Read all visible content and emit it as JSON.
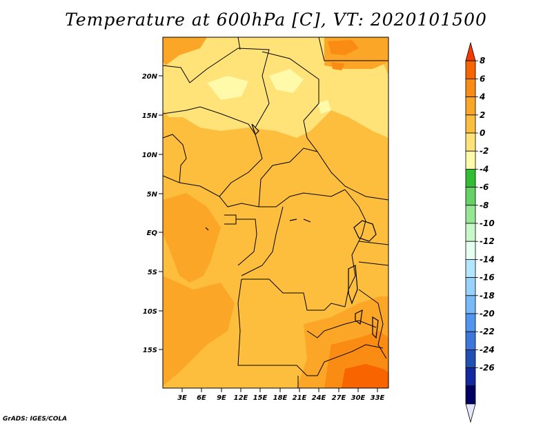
{
  "title": "Temperature at 600hPa [C], VT: 2020101500",
  "credit": "GrADS: IGES/COLA",
  "map": {
    "lat_ticks": [
      "20N",
      "15N",
      "10N",
      "5N",
      "EQ",
      "5S",
      "10S",
      "15S"
    ],
    "lon_ticks": [
      "3E",
      "6E",
      "9E",
      "12E",
      "15E",
      "18E",
      "21E",
      "24E",
      "27E",
      "30E",
      "33E"
    ]
  },
  "colorbar": {
    "levels": [
      "8",
      "6",
      "4",
      "2",
      "0",
      "-2",
      "-4",
      "-6",
      "-8",
      "-10",
      "-12",
      "-14",
      "-16",
      "-18",
      "-20",
      "-22",
      "-24",
      "-26"
    ],
    "colors": [
      "#f03c00",
      "#f86400",
      "#fa8c14",
      "#fca628",
      "#fcbe3c",
      "#ffe278",
      "#fffaaa",
      "#32be32",
      "#64d264",
      "#96e696",
      "#c8f8c8",
      "#e6fff0",
      "#b4e6ff",
      "#96d2fa",
      "#78b9fa",
      "#5096f0",
      "#3c78dc",
      "#2050b4",
      "#1428a0",
      "#000064",
      "#e6e6fa"
    ]
  }
}
